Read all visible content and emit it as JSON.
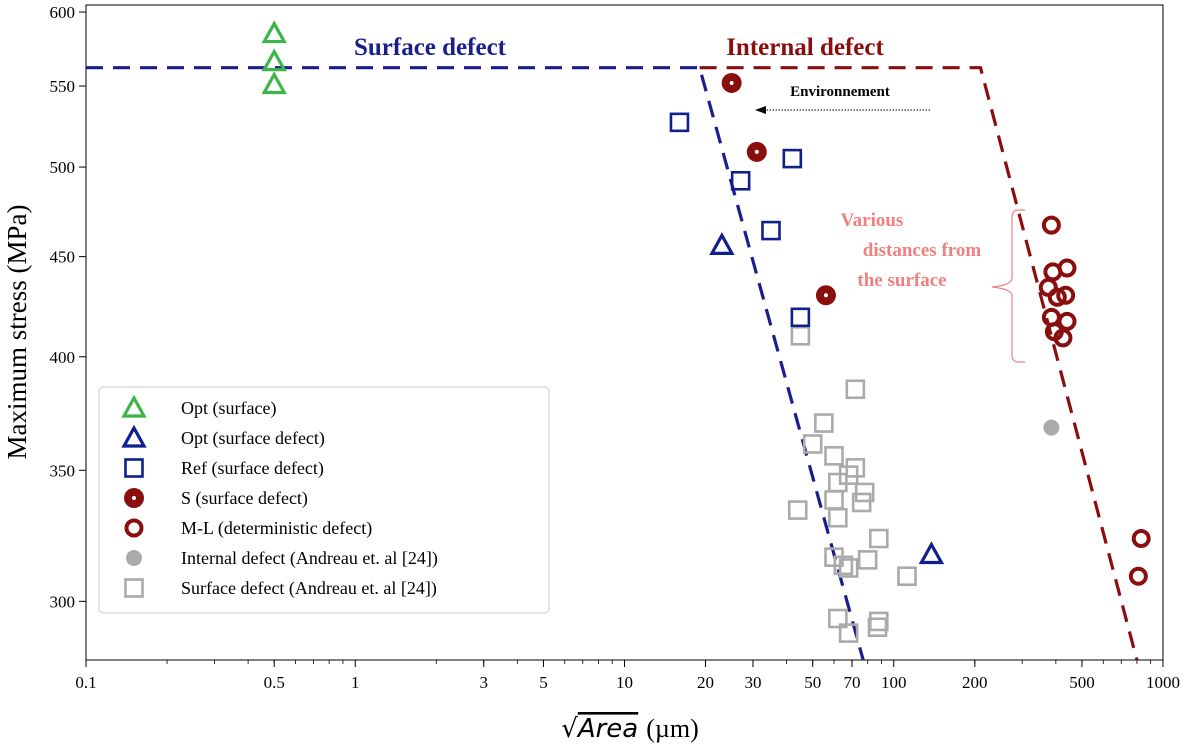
{
  "chart_data": {
    "type": "scatter",
    "xscale": "log",
    "yscale": "log",
    "xlim": [
      0.1,
      1000
    ],
    "ylim": [
      280,
      605
    ],
    "xlabel_radical": "√",
    "xlabel_italic": "Area",
    "xlabel_unit": "(µm)",
    "ylabel": "Maximum stress (MPa)",
    "x_ticks": [
      {
        "value": 0.1,
        "label": "0.1"
      },
      {
        "value": 0.5,
        "label": "0.5"
      },
      {
        "value": 1,
        "label": "1"
      },
      {
        "value": 3,
        "label": "3"
      },
      {
        "value": 5,
        "label": "5"
      },
      {
        "value": 10,
        "label": "10"
      },
      {
        "value": 20,
        "label": "20"
      },
      {
        "value": 30,
        "label": "30"
      },
      {
        "value": 50,
        "label": "50"
      },
      {
        "value": 70,
        "label": "70"
      },
      {
        "value": 100,
        "label": "100"
      },
      {
        "value": 200,
        "label": "200"
      },
      {
        "value": 500,
        "label": "500"
      },
      {
        "value": 1000,
        "label": "1000"
      }
    ],
    "y_ticks": [
      {
        "value": 300,
        "label": "300"
      },
      {
        "value": 350,
        "label": "350"
      },
      {
        "value": 400,
        "label": "400"
      },
      {
        "value": 450,
        "label": "450"
      },
      {
        "value": 500,
        "label": "500"
      },
      {
        "value": 550,
        "label": "550"
      },
      {
        "value": 600,
        "label": "600"
      }
    ],
    "grid": false,
    "legend_position": "lower-left",
    "series": [
      {
        "name": "Opt (surface)",
        "marker": "triangle",
        "color": "#3cb54a",
        "points": [
          [
            0.5,
            585
          ],
          [
            0.5,
            566
          ],
          [
            0.5,
            551
          ]
        ]
      },
      {
        "name": "Opt (surface defect)",
        "marker": "triangle",
        "color": "#0f1f8c",
        "points": [
          [
            23,
            456
          ],
          [
            138,
            317
          ]
        ]
      },
      {
        "name": "Ref (surface defect)",
        "marker": "square",
        "color": "#0f1f8c",
        "points": [
          [
            16,
            527
          ],
          [
            27,
            492
          ],
          [
            42,
            505
          ],
          [
            35,
            464
          ],
          [
            45,
            419
          ]
        ]
      },
      {
        "name": "S (surface defect)",
        "marker": "bullseye",
        "color": "#8b0e0e",
        "points": [
          [
            25,
            552
          ],
          [
            31,
            509
          ],
          [
            56,
            430
          ]
        ]
      },
      {
        "name": "M-L (deterministic defect)",
        "marker": "ring",
        "color": "#8b0e0e",
        "points": [
          [
            385,
            467
          ],
          [
            390,
            442
          ],
          [
            375,
            434
          ],
          [
            440,
            444
          ],
          [
            405,
            429
          ],
          [
            435,
            430
          ],
          [
            385,
            419
          ],
          [
            440,
            417
          ],
          [
            395,
            412
          ],
          [
            425,
            409
          ],
          [
            830,
            323
          ],
          [
            810,
            309
          ]
        ]
      },
      {
        "name": "Internal defect (Andreau et. al [24])",
        "marker": "dot",
        "color": "#aaaaaa",
        "points": [
          [
            385,
            368
          ]
        ]
      },
      {
        "name": "Surface defect (Andreau et. al [24])",
        "marker": "square",
        "color": "#aaaaaa",
        "points": [
          [
            45,
            410
          ],
          [
            72,
            385
          ],
          [
            55,
            370
          ],
          [
            50,
            361
          ],
          [
            60,
            356
          ],
          [
            62,
            345
          ],
          [
            60,
            338
          ],
          [
            62,
            331
          ],
          [
            72,
            351
          ],
          [
            68,
            348
          ],
          [
            78,
            341
          ],
          [
            76,
            337
          ],
          [
            44,
            334
          ],
          [
            88,
            323
          ],
          [
            60,
            316
          ],
          [
            65,
            313
          ],
          [
            68,
            312
          ],
          [
            80,
            315
          ],
          [
            112,
            309
          ],
          [
            62,
            294
          ],
          [
            68,
            289
          ],
          [
            88,
            293
          ],
          [
            87,
            291
          ]
        ]
      }
    ],
    "boundary_lines": [
      {
        "color": "#1a1f8c",
        "points": [
          [
            0.1,
            562
          ],
          [
            19,
            562
          ],
          [
            77,
            280
          ]
        ]
      },
      {
        "color": "#8b0e0e",
        "points": [
          [
            19,
            562
          ],
          [
            210,
            562
          ],
          [
            800,
            280
          ]
        ]
      }
    ],
    "region_labels": [
      {
        "text": "Surface defect",
        "color": "#1a1f8c"
      },
      {
        "text": "Internal defect",
        "color": "#8b0e0e"
      }
    ],
    "arrow_annotation": {
      "text": "Environnement"
    },
    "bracket_annotation": {
      "lines": [
        "Various",
        "distances from",
        "the surface"
      ],
      "color": "#f08080"
    }
  }
}
